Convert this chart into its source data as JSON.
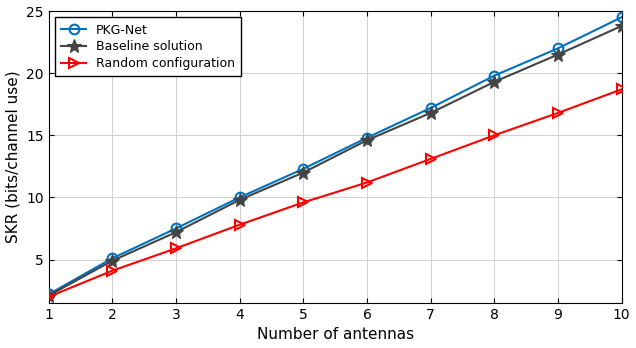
{
  "x": [
    1,
    2,
    3,
    4,
    5,
    6,
    7,
    8,
    9,
    10
  ],
  "pkg_net": [
    2.2,
    5.1,
    7.5,
    10.0,
    12.3,
    14.8,
    17.2,
    19.8,
    22.0,
    24.5
  ],
  "baseline": [
    2.1,
    4.9,
    7.2,
    9.8,
    12.0,
    14.6,
    16.8,
    19.3,
    21.5,
    23.8
  ],
  "random": [
    2.0,
    4.1,
    5.9,
    7.8,
    9.6,
    11.2,
    13.1,
    15.0,
    16.8,
    18.7
  ],
  "pkg_net_color": "#0072BD",
  "baseline_color": "#444444",
  "random_color": "#FF0000",
  "xlabel": "Number of antennas",
  "ylabel": "SKR (bits/channel use)",
  "xlim": [
    1,
    10
  ],
  "ylim": [
    1.5,
    25
  ],
  "yticks": [
    5,
    10,
    15,
    20,
    25
  ],
  "xticks": [
    1,
    2,
    3,
    4,
    5,
    6,
    7,
    8,
    9,
    10
  ],
  "legend_labels": [
    "PKG-Net",
    "Baseline solution",
    "Random configuration"
  ],
  "grid": true,
  "linewidth": 1.5,
  "markersize": 7,
  "bg_color": "#FFFFFF",
  "xlabel_fontsize": 11,
  "ylabel_fontsize": 11,
  "tick_fontsize": 10,
  "legend_fontsize": 9
}
